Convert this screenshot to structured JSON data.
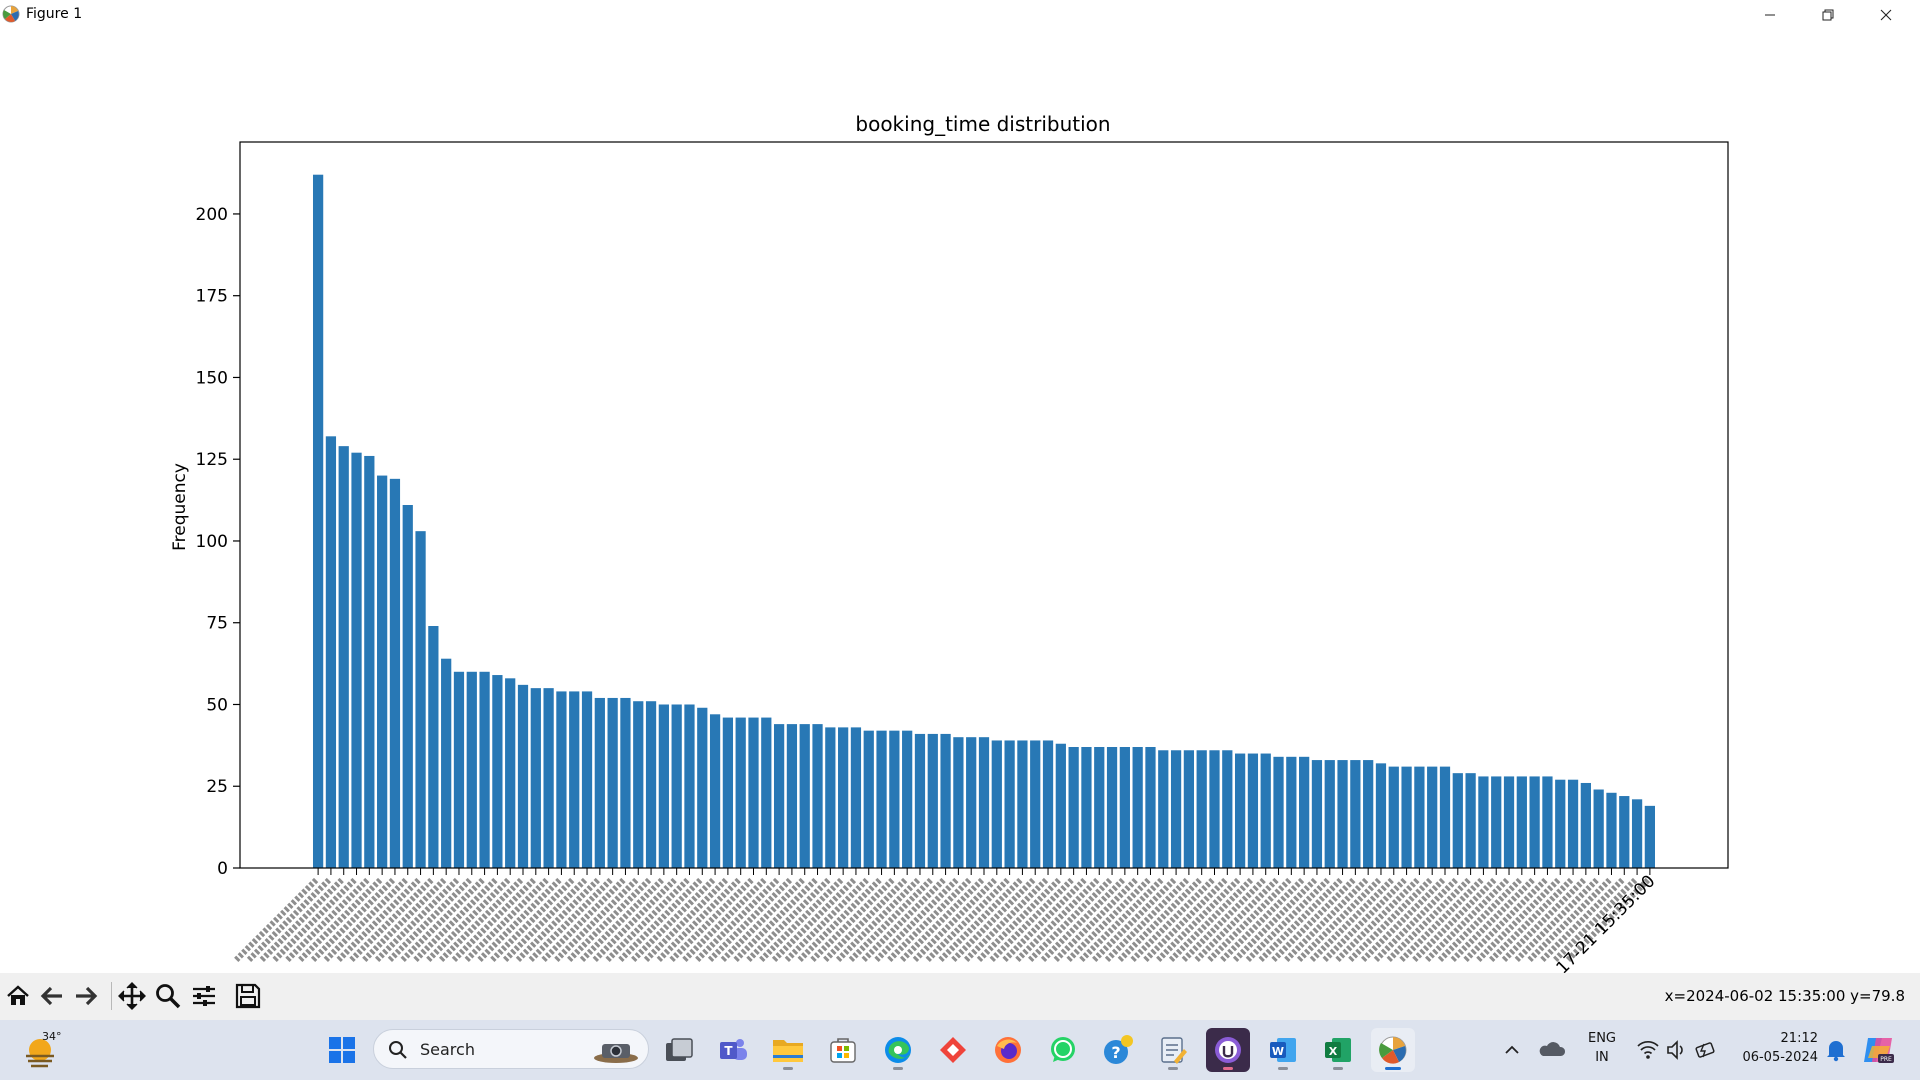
{
  "window": {
    "title": "Figure 1",
    "controls": [
      "minimize-icon",
      "restore-icon",
      "close-icon"
    ]
  },
  "toolbar": {
    "buttons": [
      "home-icon",
      "back-icon",
      "forward-icon",
      "pan-icon",
      "zoom-icon",
      "configure-subplots-icon",
      "save-icon"
    ],
    "coords_readout": "x=2024-06-02 15:35:00 y=79.8"
  },
  "chart_data": {
    "type": "bar",
    "title": "booking_time distribution",
    "xlabel": "",
    "ylabel": "Frequency",
    "ylim": [
      0,
      222
    ],
    "yticks": [
      0,
      25,
      50,
      75,
      100,
      125,
      150,
      175,
      200
    ],
    "grid": false,
    "legend": "none",
    "bar_color": "#2878b5",
    "x_tick_rotation": "45 degrees",
    "category_labels_note": "x tick labels are booking_time timestamps; only the last one is fully legible",
    "last_visible_category": "...17-21 15:35:00",
    "values": [
      212,
      132,
      129,
      127,
      126,
      120,
      119,
      111,
      103,
      74,
      64,
      60,
      60,
      60,
      59,
      58,
      56,
      55,
      55,
      54,
      54,
      54,
      52,
      52,
      52,
      51,
      51,
      50,
      50,
      50,
      49,
      47,
      46,
      46,
      46,
      46,
      44,
      44,
      44,
      44,
      43,
      43,
      43,
      42,
      42,
      42,
      42,
      41,
      41,
      41,
      40,
      40,
      40,
      39,
      39,
      39,
      39,
      39,
      38,
      37,
      37,
      37,
      37,
      37,
      37,
      37,
      36,
      36,
      36,
      36,
      36,
      36,
      35,
      35,
      35,
      34,
      34,
      34,
      33,
      33,
      33,
      33,
      33,
      32,
      31,
      31,
      31,
      31,
      31,
      29,
      29,
      28,
      28,
      28,
      28,
      28,
      28,
      27,
      27,
      26,
      24,
      23,
      22,
      21,
      19
    ]
  },
  "taskbar": {
    "weather_temp": "34°",
    "search_placeholder": "Search",
    "apps": [
      "windows-start-icon",
      "task-view-icon",
      "teams-icon",
      "file-explorer-icon",
      "ms-store-icon",
      "edge-icon",
      "anydesk-icon",
      "firefox-icon",
      "whatsapp-icon",
      "get-help-icon",
      "notepad-icon",
      "github-icon",
      "word-icon",
      "excel-icon",
      "matplotlib-figure-icon"
    ],
    "active_app": "matplotlib-figure-icon",
    "language_line1": "ENG",
    "language_line2": "IN",
    "time": "21:12",
    "date": "06-05-2024",
    "tray_icons": [
      "chevron-up-icon",
      "onedrive-icon",
      "wifi-icon",
      "volume-icon",
      "battery-icon",
      "notification-bell-icon",
      "copilot-icon"
    ]
  }
}
